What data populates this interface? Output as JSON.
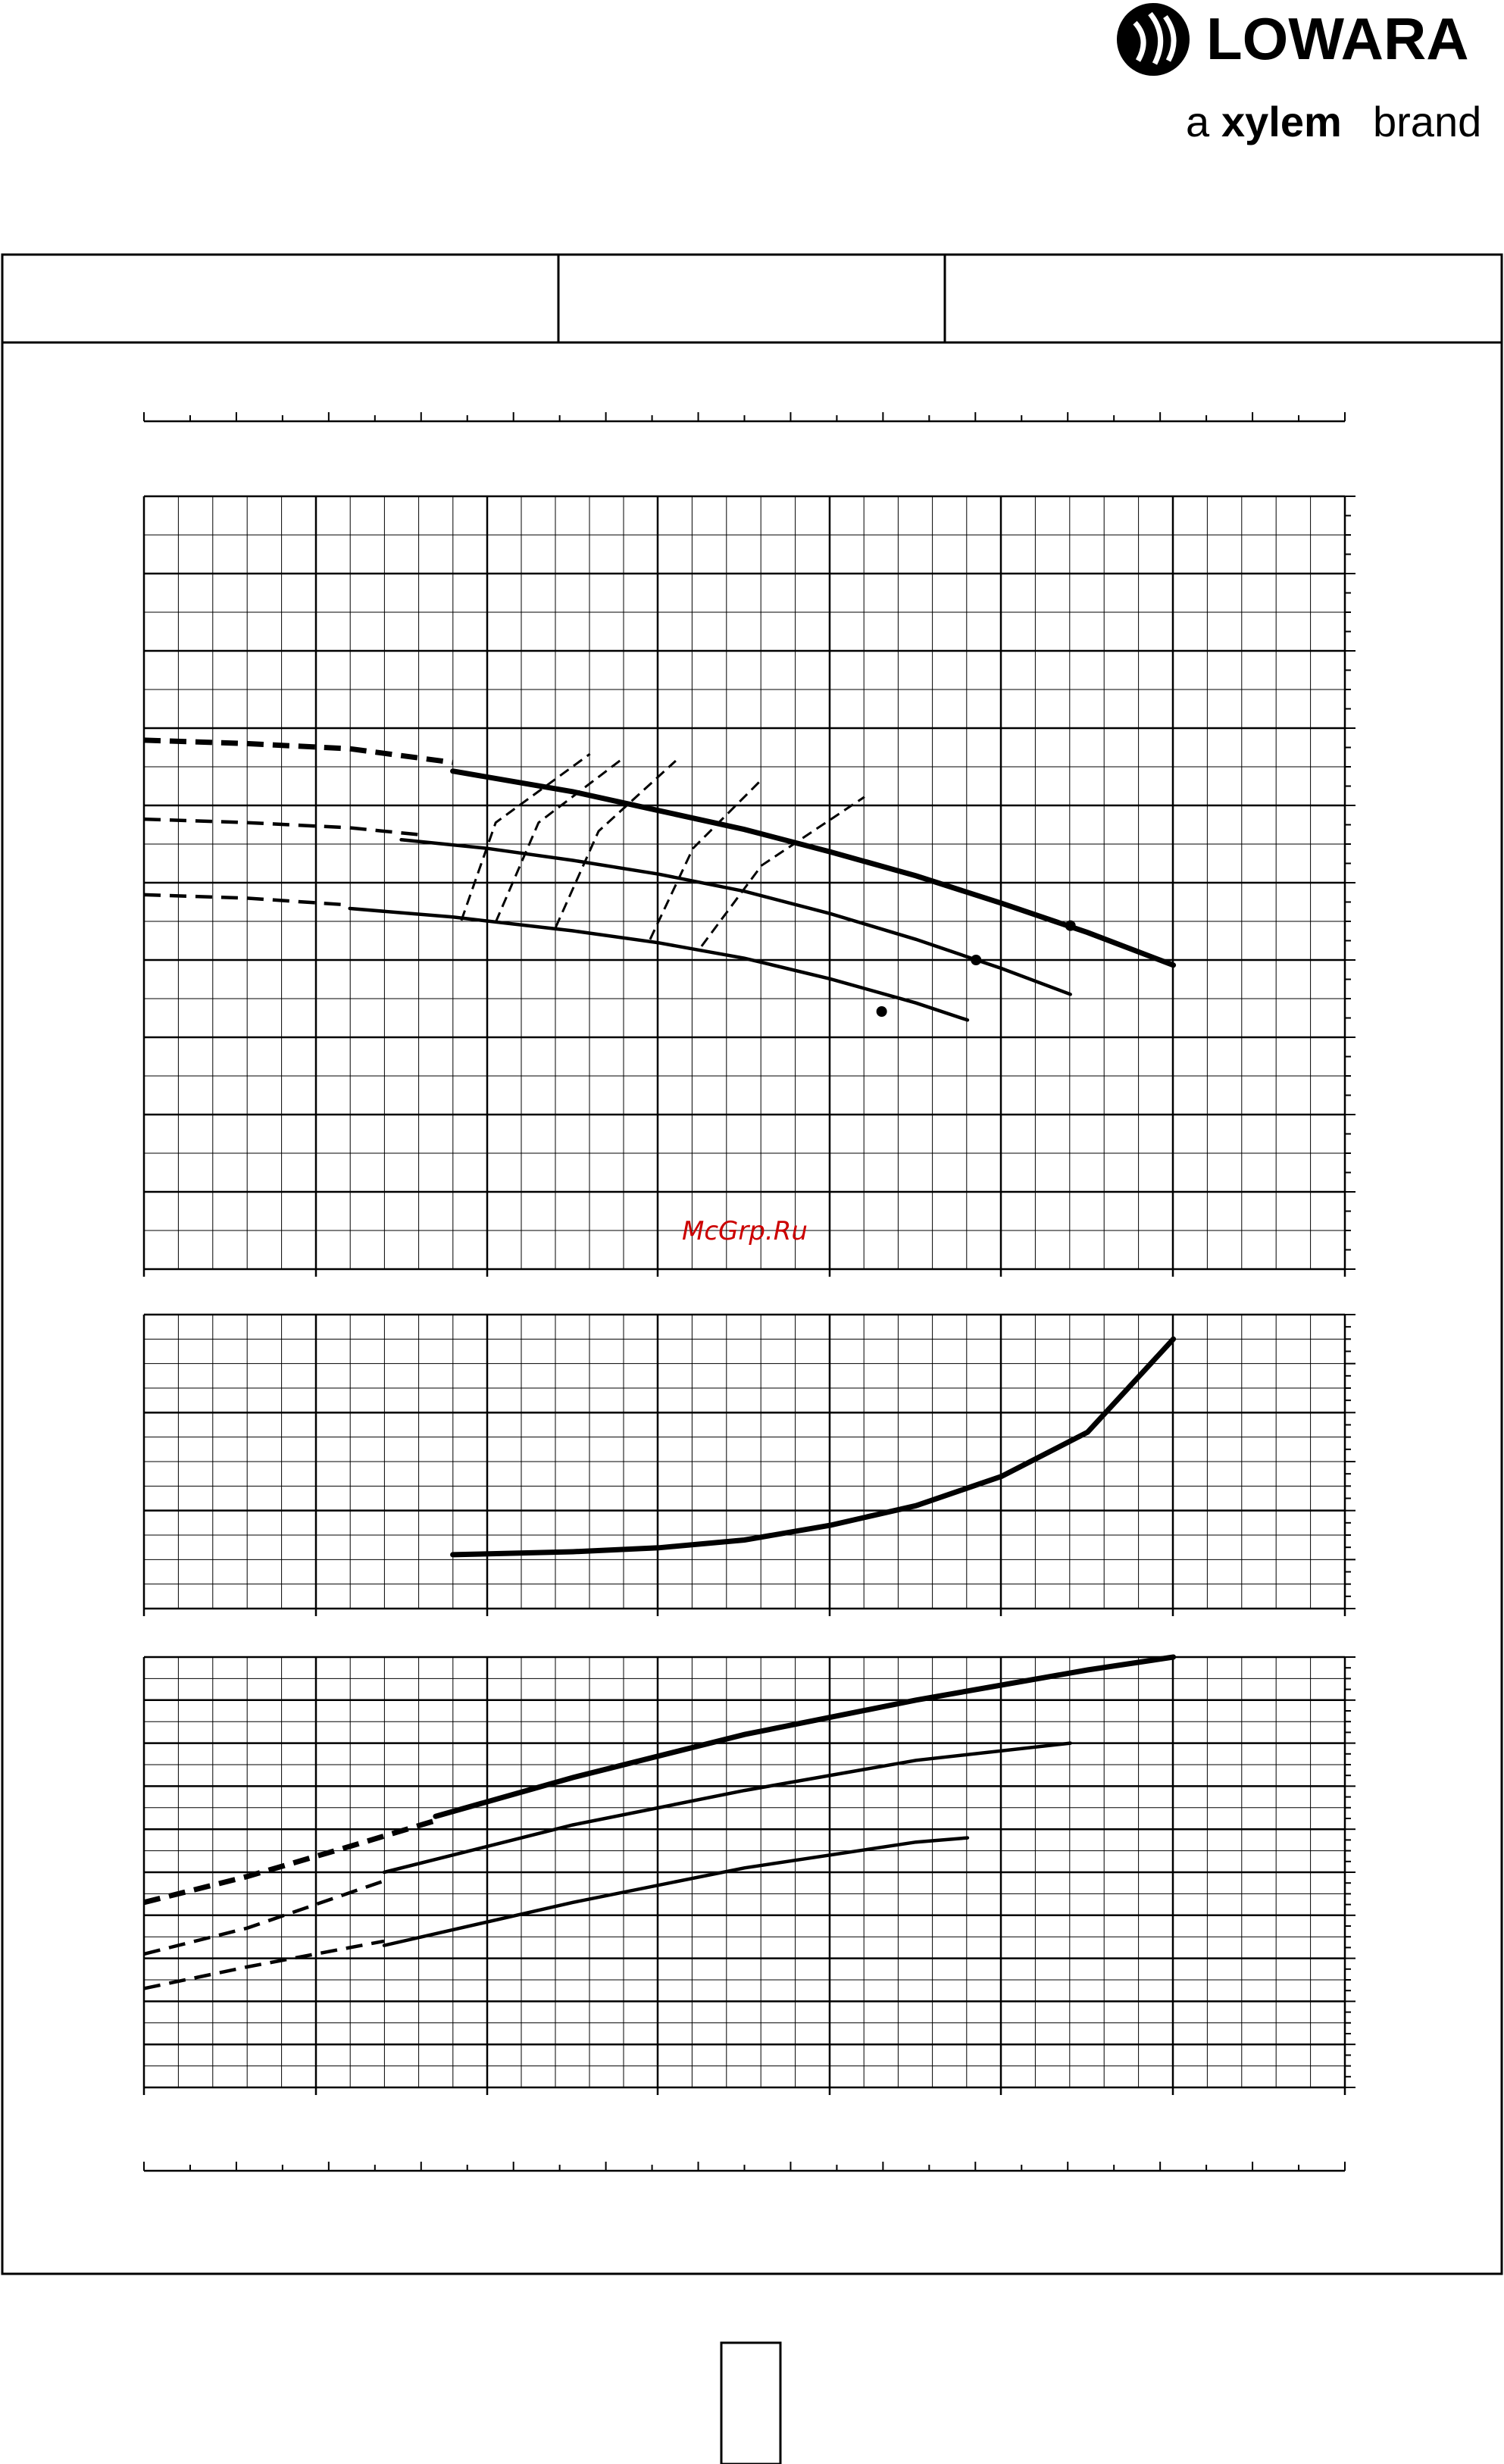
{
  "brand": {
    "name": "LOWARA",
    "tagline_prefix": "a",
    "tagline_brand": "xylem",
    "tagline_suffix": "brand"
  },
  "watermark": "McGrp.Ru",
  "colors": {
    "ink": "#000000",
    "watermark": "#cc0000",
    "paper": "#ffffff"
  },
  "chart_data": [
    {
      "type": "line",
      "panel": "head",
      "series": [
        {
          "style": "thick",
          "solid": [
            [
              1.8,
              2.9
            ],
            [
              2.5,
              2.78
            ],
            [
              3.0,
              2.67
            ],
            [
              3.5,
              2.56
            ],
            [
              4.0,
              2.43
            ],
            [
              4.5,
              2.29
            ],
            [
              5.0,
              2.13
            ],
            [
              5.5,
              1.96
            ],
            [
              6.0,
              1.77
            ]
          ],
          "dashed": [
            [
              0.0,
              3.08
            ],
            [
              0.6,
              3.06
            ],
            [
              1.2,
              3.03
            ],
            [
              1.8,
              2.95
            ]
          ],
          "point": [
            5.4,
            2.0
          ]
        },
        {
          "style": "medium",
          "solid": [
            [
              1.5,
              2.5
            ],
            [
              2.0,
              2.45
            ],
            [
              2.5,
              2.38
            ],
            [
              3.0,
              2.3
            ],
            [
              3.5,
              2.2
            ],
            [
              4.0,
              2.07
            ],
            [
              4.5,
              1.92
            ],
            [
              5.0,
              1.75
            ],
            [
              5.4,
              1.6
            ]
          ],
          "dashed": [
            [
              0.0,
              2.62
            ],
            [
              0.6,
              2.6
            ],
            [
              1.2,
              2.57
            ],
            [
              1.6,
              2.53
            ]
          ],
          "point": [
            4.85,
            1.8
          ]
        },
        {
          "style": "medium",
          "solid": [
            [
              1.2,
              2.1
            ],
            [
              1.8,
              2.05
            ],
            [
              2.5,
              1.97
            ],
            [
              3.0,
              1.9
            ],
            [
              3.5,
              1.81
            ],
            [
              4.0,
              1.69
            ],
            [
              4.5,
              1.55
            ],
            [
              4.8,
              1.45
            ]
          ],
          "dashed": [
            [
              0.0,
              2.18
            ],
            [
              0.6,
              2.16
            ],
            [
              1.2,
              2.12
            ]
          ],
          "point": [
            4.3,
            1.5
          ]
        }
      ],
      "iso_lines": [
        [
          [
            1.85,
            2.03
          ],
          [
            2.05,
            2.6
          ],
          [
            2.6,
            3.0
          ]
        ],
        [
          [
            2.05,
            2.02
          ],
          [
            2.3,
            2.6
          ],
          [
            2.8,
            2.98
          ]
        ],
        [
          [
            2.4,
            1.99
          ],
          [
            2.65,
            2.55
          ],
          [
            3.1,
            2.96
          ]
        ],
        [
          [
            2.95,
            1.92
          ],
          [
            3.2,
            2.45
          ],
          [
            3.6,
            2.85
          ]
        ],
        [
          [
            3.25,
            1.88
          ],
          [
            3.6,
            2.35
          ],
          [
            4.2,
            2.75
          ]
        ]
      ],
      "xlim": [
        0,
        7
      ],
      "ylim": [
        0,
        4.5
      ],
      "grid": true
    },
    {
      "type": "line",
      "panel": "npsh",
      "series": [
        {
          "style": "thick",
          "solid": [
            [
              1.8,
              0.55
            ],
            [
              2.5,
              0.58
            ],
            [
              3.0,
              0.62
            ],
            [
              3.5,
              0.7
            ],
            [
              4.0,
              0.85
            ],
            [
              4.5,
              1.05
            ],
            [
              5.0,
              1.35
            ],
            [
              5.5,
              1.8
            ],
            [
              6.0,
              2.75
            ]
          ]
        }
      ],
      "xlim": [
        0,
        7
      ],
      "ylim": [
        0,
        3
      ],
      "grid": true
    },
    {
      "type": "line",
      "panel": "power",
      "series": [
        {
          "style": "thick",
          "solid": [
            [
              1.7,
              3.15
            ],
            [
              2.5,
              3.6
            ],
            [
              3.5,
              4.1
            ],
            [
              4.5,
              4.5
            ],
            [
              5.5,
              4.85
            ],
            [
              6.0,
              5.0
            ]
          ],
          "dashed": [
            [
              0.0,
              2.15
            ],
            [
              0.6,
              2.45
            ],
            [
              1.2,
              2.8
            ],
            [
              1.7,
              3.1
            ]
          ]
        },
        {
          "style": "medium",
          "solid": [
            [
              1.4,
              2.5
            ],
            [
              2.5,
              3.05
            ],
            [
              3.5,
              3.45
            ],
            [
              4.5,
              3.8
            ],
            [
              5.4,
              4.0
            ]
          ],
          "dashed": [
            [
              0.0,
              1.55
            ],
            [
              0.6,
              1.85
            ],
            [
              1.4,
              2.4
            ]
          ]
        },
        {
          "style": "medium",
          "solid": [
            [
              1.4,
              1.65
            ],
            [
              2.5,
              2.15
            ],
            [
              3.5,
              2.55
            ],
            [
              4.5,
              2.85
            ],
            [
              4.8,
              2.9
            ]
          ],
          "dashed": [
            [
              0.0,
              1.15
            ],
            [
              0.6,
              1.4
            ],
            [
              1.4,
              1.7
            ]
          ]
        }
      ],
      "xlim": [
        0,
        7
      ],
      "ylim": [
        0,
        5
      ],
      "grid": true
    }
  ]
}
